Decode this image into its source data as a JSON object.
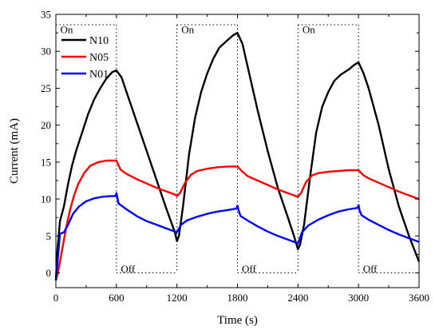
{
  "chart_data": {
    "type": "line",
    "xlabel": "Time (s)",
    "ylabel": "Current (mA)",
    "xlim": [
      0,
      3600
    ],
    "ylim": [
      -2,
      35
    ],
    "xticks": [
      0,
      600,
      1200,
      1800,
      2400,
      3000,
      3600
    ],
    "yticks": [
      0,
      5,
      10,
      15,
      20,
      25,
      30,
      35
    ],
    "grid": false,
    "legend_position": "top-left",
    "annotations": [
      {
        "text": "On",
        "x": 20,
        "y": 33.0
      },
      {
        "text": "On",
        "x": 1220,
        "y": 33.0
      },
      {
        "text": "On",
        "x": 2420,
        "y": 33.0
      },
      {
        "text": "Off",
        "x": 620,
        "y": 0.6
      },
      {
        "text": "Off",
        "x": 1820,
        "y": 0.6
      },
      {
        "text": "Off",
        "x": 3020,
        "y": 0.6
      }
    ],
    "on_intervals": [
      [
        0,
        600
      ],
      [
        1200,
        1800
      ],
      [
        2400,
        3000
      ]
    ],
    "off_intervals": [
      [
        600,
        1200
      ],
      [
        1800,
        2400
      ],
      [
        3000,
        3600
      ]
    ],
    "series": [
      {
        "name": "N10",
        "color": "#000000",
        "points": [
          [
            0,
            -1
          ],
          [
            15,
            3
          ],
          [
            40,
            7
          ],
          [
            80,
            9
          ],
          [
            120,
            12
          ],
          [
            160,
            14.5
          ],
          [
            200,
            16.5
          ],
          [
            260,
            19
          ],
          [
            320,
            21.5
          ],
          [
            380,
            23.5
          ],
          [
            440,
            25
          ],
          [
            500,
            26.3
          ],
          [
            560,
            27.2
          ],
          [
            600,
            27.4
          ],
          [
            650,
            26.5
          ],
          [
            700,
            24.5
          ],
          [
            800,
            20.5
          ],
          [
            900,
            16.5
          ],
          [
            1000,
            12.5
          ],
          [
            1100,
            8.5
          ],
          [
            1180,
            5.5
          ],
          [
            1200,
            4.3
          ],
          [
            1220,
            5
          ],
          [
            1260,
            9
          ],
          [
            1320,
            16
          ],
          [
            1380,
            21
          ],
          [
            1440,
            24.5
          ],
          [
            1500,
            27
          ],
          [
            1560,
            29
          ],
          [
            1620,
            30.5
          ],
          [
            1700,
            31.5
          ],
          [
            1760,
            32.2
          ],
          [
            1800,
            32.5
          ],
          [
            1850,
            31
          ],
          [
            1900,
            28
          ],
          [
            2000,
            22
          ],
          [
            2100,
            16.5
          ],
          [
            2200,
            11.5
          ],
          [
            2300,
            7.5
          ],
          [
            2360,
            5
          ],
          [
            2400,
            3.2
          ],
          [
            2420,
            3.8
          ],
          [
            2460,
            6.5
          ],
          [
            2520,
            13
          ],
          [
            2580,
            19
          ],
          [
            2640,
            22.5
          ],
          [
            2700,
            24.5
          ],
          [
            2760,
            26
          ],
          [
            2820,
            26.8
          ],
          [
            2900,
            27.5
          ],
          [
            2960,
            28.2
          ],
          [
            3000,
            28.5
          ],
          [
            3050,
            27
          ],
          [
            3100,
            25
          ],
          [
            3200,
            20
          ],
          [
            3300,
            14
          ],
          [
            3400,
            9
          ],
          [
            3500,
            5
          ],
          [
            3600,
            1.5
          ]
        ]
      },
      {
        "name": "N05",
        "color": "#ff0000",
        "points": [
          [
            0,
            -1
          ],
          [
            20,
            0
          ],
          [
            60,
            3
          ],
          [
            100,
            6
          ],
          [
            140,
            8.5
          ],
          [
            180,
            10.5
          ],
          [
            220,
            12
          ],
          [
            280,
            13.5
          ],
          [
            340,
            14.5
          ],
          [
            420,
            15
          ],
          [
            500,
            15.2
          ],
          [
            600,
            15.2
          ],
          [
            640,
            14
          ],
          [
            700,
            13.4
          ],
          [
            800,
            12.7
          ],
          [
            900,
            12.1
          ],
          [
            1000,
            11.5
          ],
          [
            1100,
            11
          ],
          [
            1180,
            10.6
          ],
          [
            1200,
            10.4
          ],
          [
            1230,
            10.8
          ],
          [
            1280,
            12.2
          ],
          [
            1340,
            13.3
          ],
          [
            1400,
            13.8
          ],
          [
            1500,
            14.1
          ],
          [
            1600,
            14.3
          ],
          [
            1700,
            14.4
          ],
          [
            1800,
            14.4
          ],
          [
            1850,
            13.7
          ],
          [
            1900,
            13.1
          ],
          [
            2000,
            12.5
          ],
          [
            2100,
            11.9
          ],
          [
            2200,
            11.3
          ],
          [
            2300,
            10.8
          ],
          [
            2380,
            10.4
          ],
          [
            2400,
            10.3
          ],
          [
            2430,
            10.8
          ],
          [
            2480,
            12.3
          ],
          [
            2540,
            13.2
          ],
          [
            2600,
            13.5
          ],
          [
            2700,
            13.7
          ],
          [
            2800,
            13.8
          ],
          [
            2900,
            13.9
          ],
          [
            3000,
            13.9
          ],
          [
            3050,
            13.2
          ],
          [
            3100,
            12.8
          ],
          [
            3200,
            12.2
          ],
          [
            3300,
            11.6
          ],
          [
            3400,
            11
          ],
          [
            3500,
            10.5
          ],
          [
            3600,
            10
          ]
        ]
      },
      {
        "name": "N01",
        "color": "#0000ff",
        "points": [
          [
            0,
            -1
          ],
          [
            20,
            2
          ],
          [
            40,
            5.3
          ],
          [
            80,
            5.5
          ],
          [
            120,
            6.5
          ],
          [
            170,
            8
          ],
          [
            230,
            9
          ],
          [
            300,
            9.7
          ],
          [
            380,
            10.1
          ],
          [
            460,
            10.3
          ],
          [
            540,
            10.4
          ],
          [
            590,
            10.4
          ],
          [
            600,
            10.8
          ],
          [
            610,
            10.2
          ],
          [
            620,
            9.4
          ],
          [
            700,
            8.6
          ],
          [
            800,
            7.7
          ],
          [
            900,
            7
          ],
          [
            1000,
            6.5
          ],
          [
            1100,
            6
          ],
          [
            1180,
            5.6
          ],
          [
            1200,
            5.5
          ],
          [
            1240,
            6.5
          ],
          [
            1300,
            7.1
          ],
          [
            1400,
            7.6
          ],
          [
            1500,
            8
          ],
          [
            1600,
            8.3
          ],
          [
            1700,
            8.5
          ],
          [
            1790,
            8.7
          ],
          [
            1800,
            9.1
          ],
          [
            1810,
            8.5
          ],
          [
            1830,
            7.7
          ],
          [
            1900,
            7.1
          ],
          [
            2000,
            6.3
          ],
          [
            2100,
            5.6
          ],
          [
            2200,
            5
          ],
          [
            2300,
            4.5
          ],
          [
            2380,
            4.1
          ],
          [
            2400,
            4
          ],
          [
            2440,
            5.5
          ],
          [
            2500,
            6.4
          ],
          [
            2600,
            7.2
          ],
          [
            2700,
            7.8
          ],
          [
            2800,
            8.3
          ],
          [
            2900,
            8.6
          ],
          [
            2990,
            8.8
          ],
          [
            3000,
            9.2
          ],
          [
            3010,
            8.5
          ],
          [
            3030,
            7.8
          ],
          [
            3100,
            7.2
          ],
          [
            3200,
            6.5
          ],
          [
            3300,
            5.8
          ],
          [
            3400,
            5.2
          ],
          [
            3500,
            4.7
          ],
          [
            3600,
            4.2
          ]
        ]
      }
    ]
  }
}
